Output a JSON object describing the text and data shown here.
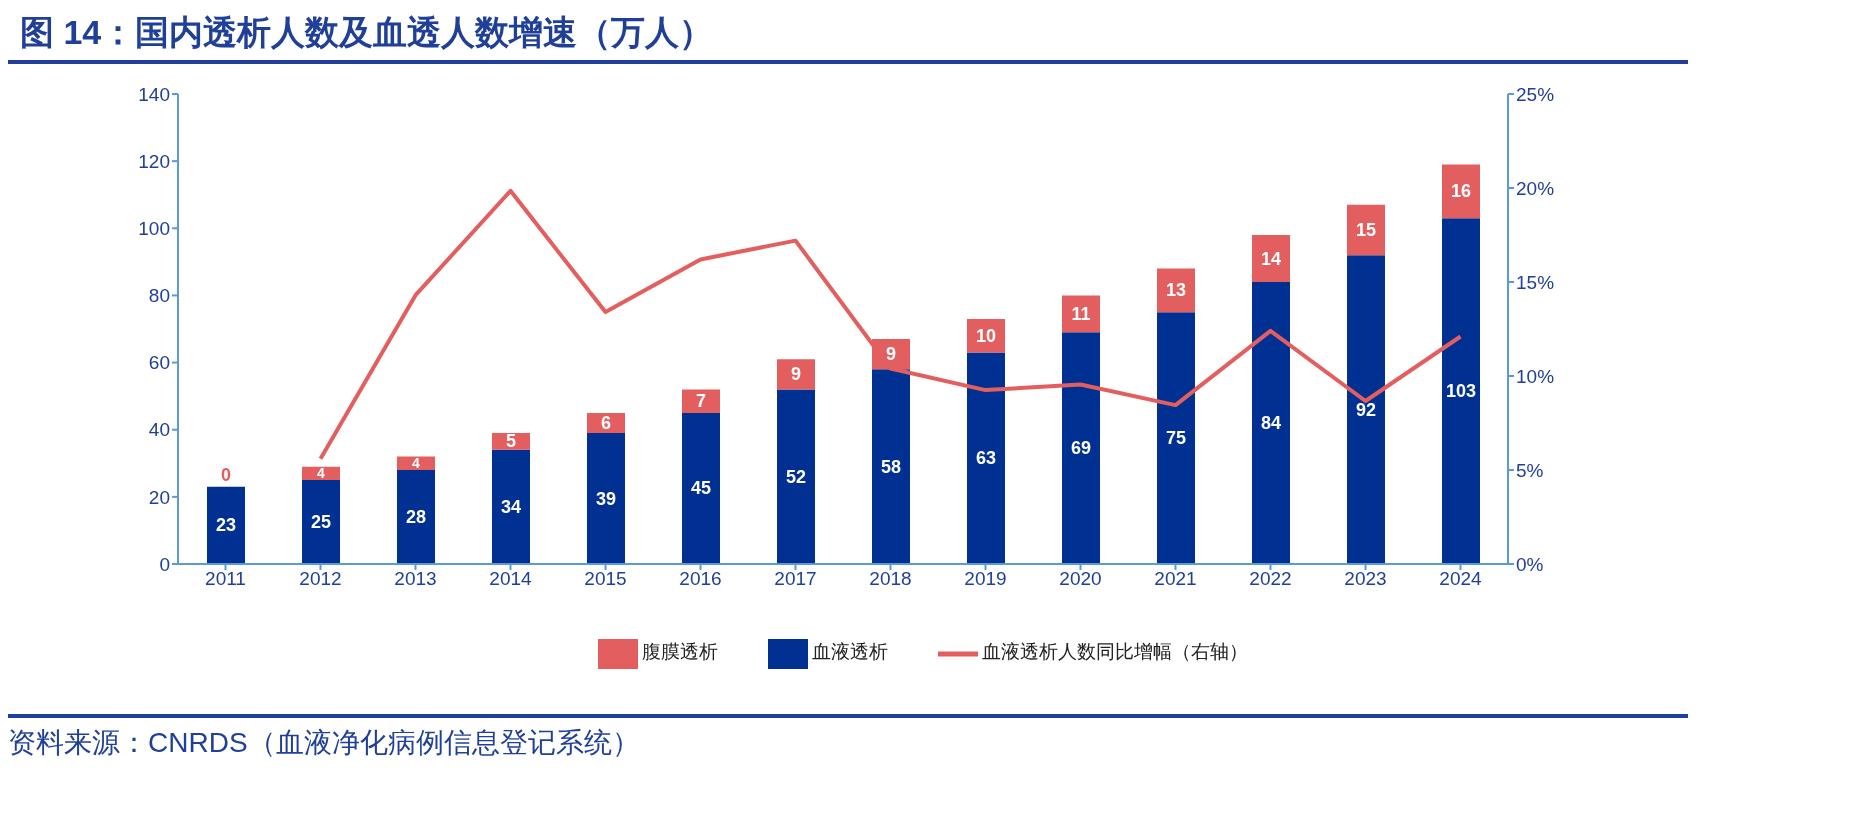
{
  "chart_data": {
    "type": "bar",
    "title": "图 14：国内透析人数及血透人数增速（万人）",
    "categories": [
      "2011",
      "2012",
      "2013",
      "2014",
      "2015",
      "2016",
      "2017",
      "2018",
      "2019",
      "2020",
      "2021",
      "2022",
      "2023",
      "2024"
    ],
    "stacked": true,
    "series": [
      {
        "name": "血液透析",
        "color": "#003192",
        "values": [
          23,
          25,
          28,
          34,
          39,
          45,
          52,
          58,
          63,
          69,
          75,
          84,
          92,
          103
        ],
        "value_labels": [
          "23",
          "25",
          "28",
          "34",
          "39",
          "45",
          "52",
          "58",
          "63",
          "69",
          "75",
          "84",
          "92",
          "103"
        ]
      },
      {
        "name": "腹膜透析",
        "color": "#e35f5f",
        "values": [
          0,
          4,
          4,
          5,
          6,
          7,
          9,
          9,
          10,
          11,
          13,
          14,
          15,
          16
        ],
        "value_labels": [
          "0",
          "4",
          "4",
          "5",
          "6",
          "7",
          "9",
          "9",
          "10",
          "11",
          "13",
          "14",
          "15",
          "16"
        ]
      },
      {
        "name": "血液透析人数同比增幅（右轴）",
        "type": "line",
        "axis": "y2",
        "color": "#e35f5f",
        "values": [
          null,
          5.6,
          14.3,
          19.85,
          13.4,
          16.2,
          17.2,
          10.4,
          9.25,
          9.55,
          8.45,
          12.4,
          8.67,
          12.1
        ]
      }
    ],
    "ylim": [
      0,
      140
    ],
    "yticks": [
      0,
      20,
      40,
      60,
      80,
      100,
      120,
      140
    ],
    "y2lim": [
      0,
      25
    ],
    "y2ticks": [
      {
        "value": 0,
        "label": "0%"
      },
      {
        "value": 5,
        "label": "5%"
      },
      {
        "value": 10,
        "label": "10%"
      },
      {
        "value": 15,
        "label": "15%"
      },
      {
        "value": 20,
        "label": "20%"
      },
      {
        "value": 25,
        "label": "25%"
      }
    ],
    "grid": false,
    "legend": "bottom",
    "marker": "none",
    "line_style": "solid",
    "annotations": [
      "资料来源：CNRDS（血液净化病例信息登记系统）"
    ]
  }
}
